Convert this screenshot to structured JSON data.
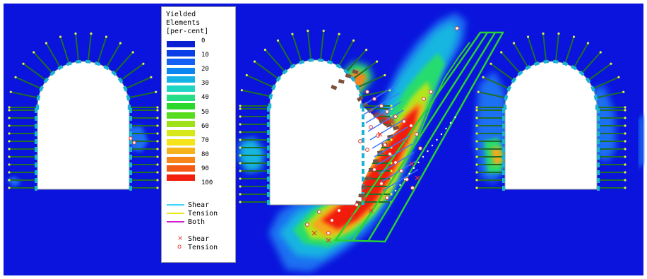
{
  "legend": {
    "title_lines": [
      "Yielded",
      "Elements",
      "[per-cent]"
    ],
    "ticks": [
      "0",
      "10",
      "20",
      "30",
      "40",
      "50",
      "60",
      "70",
      "80",
      "90",
      "100"
    ],
    "swatches": [
      "#0a1fd2",
      "#0a3ee6",
      "#1460f5",
      "#0c86f0",
      "#15b2e6",
      "#1fd6c2",
      "#26de86",
      "#2dd82c",
      "#57dc1e",
      "#9ee01a",
      "#d6e81a",
      "#f6e41a",
      "#f6b21a",
      "#f6861a",
      "#f55a14",
      "#f21e0e"
    ],
    "line_items": [
      {
        "label": "Shear",
        "color": "#3cd6f6"
      },
      {
        "label": "Tension",
        "color": "#e8e81e"
      },
      {
        "label": "Both",
        "color": "#d21ed2"
      }
    ],
    "marker_items": [
      {
        "symbol": "×",
        "label": "Shear"
      },
      {
        "symbol": "o",
        "label": "Tension"
      }
    ]
  },
  "colors": {
    "background": "#0a14dc",
    "rock_bolt": "#1f6e2a",
    "bolt_tip": "#e6f04a",
    "liner": "#19b3d6",
    "fault": "#28d232",
    "opening": "#ffffff",
    "yield_marker": "#e8362e"
  }
}
